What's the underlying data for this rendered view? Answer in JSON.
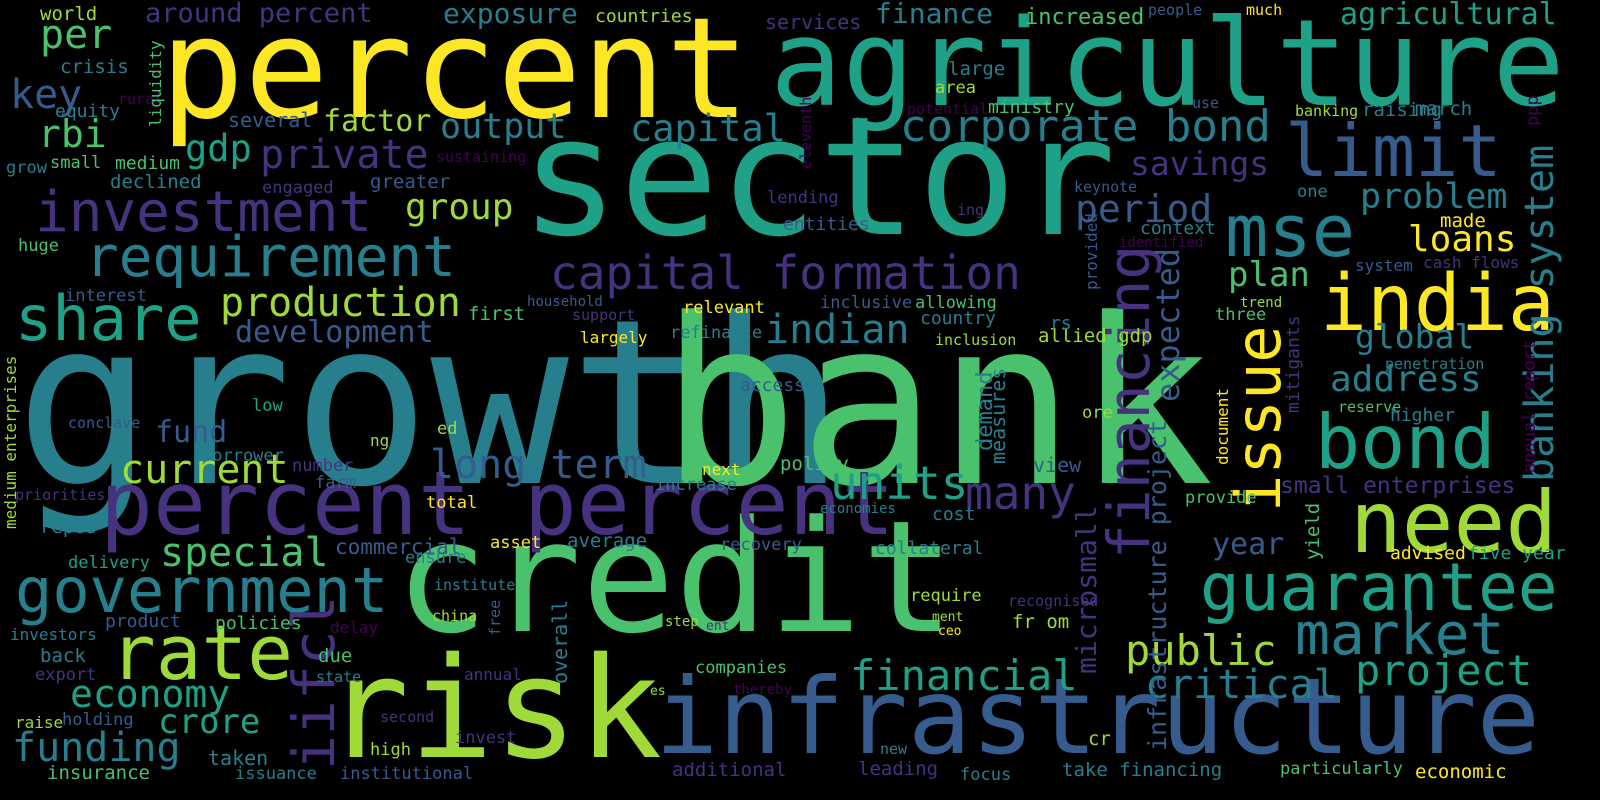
{
  "palette": {
    "background": "#000000",
    "c0": "#440154",
    "c1": "#46327e",
    "c2": "#365c8d",
    "c3": "#277f8e",
    "c4": "#1fa187",
    "c5": "#4ac16d",
    "c6": "#a0da39",
    "c7": "#fde725"
  },
  "words": [
    {
      "text": "growth",
      "color": "#277f8e",
      "vertical": false
    },
    {
      "text": "bank",
      "color": "#4ac16d",
      "vertical": false
    },
    {
      "text": "sector",
      "color": "#1fa187",
      "vertical": false
    },
    {
      "text": "credit",
      "color": "#4ac16d",
      "vertical": false
    },
    {
      "text": "percent",
      "color": "#fde725",
      "vertical": false
    },
    {
      "text": "agriculture",
      "color": "#1fa187",
      "vertical": false
    },
    {
      "text": "risk",
      "color": "#a0da39",
      "vertical": false
    },
    {
      "text": "infrastructure",
      "color": "#365c8d",
      "vertical": false
    },
    {
      "text": "percent percent",
      "color": "#46327e",
      "vertical": false
    },
    {
      "text": "capital formation",
      "color": "#46327e",
      "vertical": false
    },
    {
      "text": "investment",
      "color": "#46327e",
      "vertical": false
    },
    {
      "text": "requirement",
      "color": "#277f8e",
      "vertical": false
    },
    {
      "text": "share",
      "color": "#1fa187",
      "vertical": false
    },
    {
      "text": "rate",
      "color": "#a0da39",
      "vertical": false
    },
    {
      "text": "government",
      "color": "#277f8e",
      "vertical": false
    },
    {
      "text": "india",
      "color": "#fde725",
      "vertical": false
    },
    {
      "text": "need",
      "color": "#a0da39",
      "vertical": false
    },
    {
      "text": "bond",
      "color": "#1fa187",
      "vertical": false
    },
    {
      "text": "guarantee",
      "color": "#1fa187",
      "vertical": false
    },
    {
      "text": "market",
      "color": "#277f8e",
      "vertical": false
    },
    {
      "text": "mse",
      "color": "#277f8e",
      "vertical": false
    },
    {
      "text": "limit",
      "color": "#365c8d",
      "vertical": false
    },
    {
      "text": "corporate bond",
      "color": "#277f8e",
      "vertical": false
    },
    {
      "text": "issue",
      "color": "#fde725",
      "vertical": true
    },
    {
      "text": "financing",
      "color": "#46327e",
      "vertical": true
    },
    {
      "text": "banking system",
      "color": "#277f8e",
      "vertical": true
    },
    {
      "text": "iifcl",
      "color": "#46327e",
      "vertical": true
    },
    {
      "text": "production",
      "color": "#a0da39",
      "vertical": false
    },
    {
      "text": "current",
      "color": "#a0da39",
      "vertical": false
    },
    {
      "text": "long term",
      "color": "#365c8d",
      "vertical": false
    },
    {
      "text": "units",
      "color": "#1fa187",
      "vertical": false
    },
    {
      "text": "many",
      "color": "#46327e",
      "vertical": false
    },
    {
      "text": "economy",
      "color": "#1fa187",
      "vertical": false
    },
    {
      "text": "funding",
      "color": "#277f8e",
      "vertical": false
    },
    {
      "text": "financial",
      "color": "#1fa187",
      "vertical": false
    },
    {
      "text": "project",
      "color": "#1fa187",
      "vertical": false
    },
    {
      "text": "critical",
      "color": "#277f8e",
      "vertical": false
    },
    {
      "text": "public",
      "color": "#a0da39",
      "vertical": false
    },
    {
      "text": "special",
      "color": "#4ac16d",
      "vertical": false
    },
    {
      "text": "crore",
      "color": "#1fa187",
      "vertical": false
    },
    {
      "text": "indian",
      "color": "#277f8e",
      "vertical": false
    },
    {
      "text": "period",
      "color": "#365c8d",
      "vertical": false
    },
    {
      "text": "group",
      "color": "#a0da39",
      "vertical": false
    },
    {
      "text": "output",
      "color": "#277f8e",
      "vertical": false
    },
    {
      "text": "capital",
      "color": "#277f8e",
      "vertical": false
    },
    {
      "text": "private",
      "color": "#46327e",
      "vertical": false
    },
    {
      "text": "rbi",
      "color": "#4ac16d",
      "vertical": false
    },
    {
      "text": "per",
      "color": "#4ac16d",
      "vertical": false
    },
    {
      "text": "key",
      "color": "#365c8d",
      "vertical": false
    },
    {
      "text": "gdp",
      "color": "#1fa187",
      "vertical": false
    },
    {
      "text": "factor",
      "color": "#a0da39",
      "vertical": false
    },
    {
      "text": "development",
      "color": "#365c8d",
      "vertical": false
    },
    {
      "text": "loans",
      "color": "#fde725",
      "vertical": false
    },
    {
      "text": "problem",
      "color": "#277f8e",
      "vertical": false
    },
    {
      "text": "plan",
      "color": "#4ac16d",
      "vertical": false
    },
    {
      "text": "savings",
      "color": "#46327e",
      "vertical": false
    },
    {
      "text": "global",
      "color": "#277f8e",
      "vertical": false
    },
    {
      "text": "address",
      "color": "#277f8e",
      "vertical": false
    },
    {
      "text": "year",
      "color": "#365c8d",
      "vertical": false
    },
    {
      "text": "expected",
      "color": "#365c8d",
      "vertical": true
    },
    {
      "text": "infrastructure project",
      "color": "#365c8d",
      "vertical": true
    },
    {
      "text": "microsmall",
      "color": "#46327e",
      "vertical": true
    },
    {
      "text": "exposure",
      "color": "#277f8e",
      "vertical": false
    },
    {
      "text": "around percent",
      "color": "#46327e",
      "vertical": false
    },
    {
      "text": "finance",
      "color": "#277f8e",
      "vertical": false
    },
    {
      "text": "increased",
      "color": "#4ac16d",
      "vertical": false
    },
    {
      "text": "agricultural",
      "color": "#1fa187",
      "vertical": false
    },
    {
      "text": "small enterprises",
      "color": "#46327e",
      "vertical": false
    },
    {
      "text": "fund",
      "color": "#365c8d",
      "vertical": false
    },
    {
      "text": "world",
      "color": "#a0da39",
      "vertical": false
    },
    {
      "text": "countries",
      "color": "#a0da39",
      "vertical": false
    },
    {
      "text": "services",
      "color": "#46327e",
      "vertical": false
    },
    {
      "text": "crisis",
      "color": "#277f8e",
      "vertical": false
    },
    {
      "text": "equity",
      "color": "#277f8e",
      "vertical": false
    },
    {
      "text": "rural",
      "color": "#440154",
      "vertical": false
    },
    {
      "text": "grow",
      "color": "#277f8e",
      "vertical": false
    },
    {
      "text": "small",
      "color": "#4ac16d",
      "vertical": false
    },
    {
      "text": "medium",
      "color": "#4ac16d",
      "vertical": false
    },
    {
      "text": "declined",
      "color": "#277f8e",
      "vertical": false
    },
    {
      "text": "huge",
      "color": "#4ac16d",
      "vertical": false
    },
    {
      "text": "several",
      "color": "#365c8d",
      "vertical": false
    },
    {
      "text": "engaged",
      "color": "#46327e",
      "vertical": false
    },
    {
      "text": "greater",
      "color": "#365c8d",
      "vertical": false
    },
    {
      "text": "sustaining",
      "color": "#440154",
      "vertical": false
    },
    {
      "text": "liquidity",
      "color": "#4ac16d",
      "vertical": true
    },
    {
      "text": "interest",
      "color": "#365c8d",
      "vertical": false
    },
    {
      "text": "first",
      "color": "#4ac16d",
      "vertical": false
    },
    {
      "text": "household",
      "color": "#365c8d",
      "vertical": false
    },
    {
      "text": "support",
      "color": "#46327e",
      "vertical": false
    },
    {
      "text": "relevant",
      "color": "#fde725",
      "vertical": false
    },
    {
      "text": "refinance",
      "color": "#277f8e",
      "vertical": false
    },
    {
      "text": "largely",
      "color": "#fde725",
      "vertical": false
    },
    {
      "text": "inclusive",
      "color": "#365c8d",
      "vertical": false
    },
    {
      "text": "allowing",
      "color": "#4ac16d",
      "vertical": false
    },
    {
      "text": "country",
      "color": "#277f8e",
      "vertical": false
    },
    {
      "text": "inclusion",
      "color": "#a0da39",
      "vertical": false
    },
    {
      "text": "allied gdp",
      "color": "#a0da39",
      "vertical": false
    },
    {
      "text": "rs",
      "color": "#277f8e",
      "vertical": false
    },
    {
      "text": "access",
      "color": "#365c8d",
      "vertical": false
    },
    {
      "text": "low",
      "color": "#1fa187",
      "vertical": false
    },
    {
      "text": "conclave",
      "color": "#365c8d",
      "vertical": false
    },
    {
      "text": "ed",
      "color": "#a0da39",
      "vertical": false
    },
    {
      "text": "ng",
      "color": "#a0da39",
      "vertical": false
    },
    {
      "text": "borrower",
      "color": "#277f8e",
      "vertical": false
    },
    {
      "text": "number",
      "color": "#46327e",
      "vertical": false
    },
    {
      "text": "farm",
      "color": "#365c8d",
      "vertical": false
    },
    {
      "text": "priorities",
      "color": "#46327e",
      "vertical": false
    },
    {
      "text": "repos",
      "color": "#277f8e",
      "vertical": false
    },
    {
      "text": "delivery",
      "color": "#1fa187",
      "vertical": false
    },
    {
      "text": "commercial",
      "color": "#365c8d",
      "vertical": false
    },
    {
      "text": "ensure",
      "color": "#277f8e",
      "vertical": false
    },
    {
      "text": "asset",
      "color": "#fde725",
      "vertical": false
    },
    {
      "text": "average",
      "color": "#277f8e",
      "vertical": false
    },
    {
      "text": "recovery",
      "color": "#365c8d",
      "vertical": false
    },
    {
      "text": "collateral",
      "color": "#277f8e",
      "vertical": false
    },
    {
      "text": "next",
      "color": "#fde725",
      "vertical": false
    },
    {
      "text": "policy",
      "color": "#4ac16d",
      "vertical": false
    },
    {
      "text": "increase",
      "color": "#277f8e",
      "vertical": false
    },
    {
      "text": "total",
      "color": "#fde725",
      "vertical": false
    },
    {
      "text": "economies",
      "color": "#277f8e",
      "vertical": false
    },
    {
      "text": "cost",
      "color": "#277f8e",
      "vertical": false
    },
    {
      "text": "view",
      "color": "#365c8d",
      "vertical": false
    },
    {
      "text": "institute",
      "color": "#277f8e",
      "vertical": false
    },
    {
      "text": "china",
      "color": "#a0da39",
      "vertical": false
    },
    {
      "text": "free",
      "color": "#365c8d",
      "vertical": true
    },
    {
      "text": "overall",
      "color": "#277f8e",
      "vertical": true
    },
    {
      "text": "step",
      "color": "#a0da39",
      "vertical": false
    },
    {
      "text": "ent",
      "color": "#46327e",
      "vertical": false
    },
    {
      "text": "require",
      "color": "#a0da39",
      "vertical": false
    },
    {
      "text": "ment",
      "color": "#a0da39",
      "vertical": false
    },
    {
      "text": "ceo",
      "color": "#fde725",
      "vertical": false
    },
    {
      "text": "recognised",
      "color": "#46327e",
      "vertical": false
    },
    {
      "text": "fr om",
      "color": "#a0da39",
      "vertical": false
    },
    {
      "text": "product",
      "color": "#365c8d",
      "vertical": false
    },
    {
      "text": "policies",
      "color": "#4ac16d",
      "vertical": false
    },
    {
      "text": "delay",
      "color": "#440154",
      "vertical": false
    },
    {
      "text": "investors",
      "color": "#277f8e",
      "vertical": false
    },
    {
      "text": "back",
      "color": "#277f8e",
      "vertical": false
    },
    {
      "text": "due",
      "color": "#4ac16d",
      "vertical": false
    },
    {
      "text": "export",
      "color": "#46327e",
      "vertical": false
    },
    {
      "text": "annual",
      "color": "#46327e",
      "vertical": false
    },
    {
      "text": "state",
      "color": "#277f8e",
      "vertical": false
    },
    {
      "text": "companies",
      "color": "#4ac16d",
      "vertical": false
    },
    {
      "text": "es",
      "color": "#a0da39",
      "vertical": false
    },
    {
      "text": "thereby",
      "color": "#440154",
      "vertical": false
    },
    {
      "text": "raise",
      "color": "#a0da39",
      "vertical": false
    },
    {
      "text": "holding",
      "color": "#365c8d",
      "vertical": false
    },
    {
      "text": "taken",
      "color": "#277f8e",
      "vertical": false
    },
    {
      "text": "second",
      "color": "#46327e",
      "vertical": false
    },
    {
      "text": "high",
      "color": "#a0da39",
      "vertical": false
    },
    {
      "text": "invest",
      "color": "#46327e",
      "vertical": false
    },
    {
      "text": "insurance",
      "color": "#4ac16d",
      "vertical": false
    },
    {
      "text": "issuance",
      "color": "#277f8e",
      "vertical": false
    },
    {
      "text": "institutional",
      "color": "#365c8d",
      "vertical": false
    },
    {
      "text": "additional",
      "color": "#46327e",
      "vertical": false
    },
    {
      "text": "leading",
      "color": "#46327e",
      "vertical": false
    },
    {
      "text": "new",
      "color": "#277f8e",
      "vertical": false
    },
    {
      "text": "focus",
      "color": "#277f8e",
      "vertical": false
    },
    {
      "text": "cr",
      "color": "#a0da39",
      "vertical": false
    },
    {
      "text": "take financing",
      "color": "#277f8e",
      "vertical": false
    },
    {
      "text": "particularly",
      "color": "#4ac16d",
      "vertical": false
    },
    {
      "text": "economic",
      "color": "#fde725",
      "vertical": false
    },
    {
      "text": "people",
      "color": "#365c8d",
      "vertical": false
    },
    {
      "text": "much",
      "color": "#fde725",
      "vertical": false
    },
    {
      "text": "area",
      "color": "#a0da39",
      "vertical": false
    },
    {
      "text": "large",
      "color": "#277f8e",
      "vertical": false
    },
    {
      "text": "potential",
      "color": "#440154",
      "vertical": false
    },
    {
      "text": "ministry",
      "color": "#4ac16d",
      "vertical": false
    },
    {
      "text": "use",
      "color": "#365c8d",
      "vertical": false
    },
    {
      "text": "banking",
      "color": "#a0da39",
      "vertical": false
    },
    {
      "text": "raising",
      "color": "#277f8e",
      "vertical": false
    },
    {
      "text": "march",
      "color": "#277f8e",
      "vertical": false
    },
    {
      "text": "lending",
      "color": "#46327e",
      "vertical": false
    },
    {
      "text": "ing",
      "color": "#46327e",
      "vertical": false
    },
    {
      "text": "entities",
      "color": "#365c8d",
      "vertical": false
    },
    {
      "text": "keynote",
      "color": "#365c8d",
      "vertical": false
    },
    {
      "text": "context",
      "color": "#277f8e",
      "vertical": false
    },
    {
      "text": "identified",
      "color": "#440154",
      "vertical": false
    },
    {
      "text": "provided",
      "color": "#365c8d",
      "vertical": true
    },
    {
      "text": "eleventh",
      "color": "#440154",
      "vertical": true
    },
    {
      "text": "one",
      "color": "#277f8e",
      "vertical": false
    },
    {
      "text": "made",
      "color": "#fde725",
      "vertical": false
    },
    {
      "text": "system",
      "color": "#365c8d",
      "vertical": false
    },
    {
      "text": "cash flows",
      "color": "#46327e",
      "vertical": false
    },
    {
      "text": "trend",
      "color": "#a0da39",
      "vertical": false
    },
    {
      "text": "three",
      "color": "#4ac16d",
      "vertical": false
    },
    {
      "text": "mitigants",
      "color": "#46327e",
      "vertical": true
    },
    {
      "text": "penetration",
      "color": "#277f8e",
      "vertical": false
    },
    {
      "text": "annual report",
      "color": "#440154",
      "vertical": true
    },
    {
      "text": "reserve",
      "color": "#4ac16d",
      "vertical": false
    },
    {
      "text": "higher",
      "color": "#277f8e",
      "vertical": false
    },
    {
      "text": "document",
      "color": "#fde725",
      "vertical": true
    },
    {
      "text": "provide",
      "color": "#4ac16d",
      "vertical": false
    },
    {
      "text": "yield",
      "color": "#4ac16d",
      "vertical": true
    },
    {
      "text": "advised",
      "color": "#fde725",
      "vertical": false
    },
    {
      "text": "five year",
      "color": "#1fa187",
      "vertical": false
    },
    {
      "text": "ore",
      "color": "#a0da39",
      "vertical": false
    },
    {
      "text": "demand",
      "color": "#277f8e",
      "vertical": true
    },
    {
      "text": "measures",
      "color": "#277f8e",
      "vertical": true
    },
    {
      "text": "medium enterprises",
      "color": "#a0da39",
      "vertical": true
    },
    {
      "text": "ppp",
      "color": "#440154",
      "vertical": true
    }
  ]
}
